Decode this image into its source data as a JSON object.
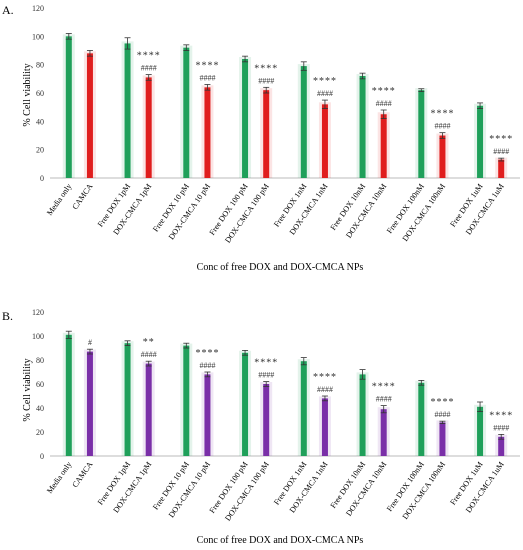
{
  "chart_data": [
    {
      "panel_label": "A.",
      "type": "bar",
      "ylabel": "% Cell viability",
      "xlabel": "Conc of free DOX and DOX-CMCA NPs",
      "ylim": [
        0,
        120
      ],
      "yticks": [
        0,
        20,
        40,
        60,
        80,
        100,
        120
      ],
      "categories": [
        "Media only",
        "CAMCA",
        "Free DOX 1pM",
        "DOX-CMCA 1pM",
        "Free DOX 10 pM",
        "DOX-CMCA 10 pM",
        "Free DOX 100 pM",
        "DOX-CMCA 100 pM",
        "Free DOX 1nM",
        "DOX-CMCA 1nM",
        "Free DOX 10nM",
        "DOX-CMCA 10nM",
        "Free DOX 100nM",
        "DOX-CMCA 100nM",
        "Free DOX 1uM",
        "DOX-CMCA 1uM"
      ],
      "values": [
        100,
        88,
        95,
        71,
        92,
        64,
        84,
        62,
        79,
        52,
        72,
        45,
        62,
        30,
        51,
        13
      ],
      "errors": [
        2,
        2,
        4,
        2,
        2,
        2,
        2,
        2,
        3,
        3,
        2,
        3,
        1,
        2,
        2,
        1
      ],
      "colors": [
        "#1fa05a",
        "#e01e1e",
        "#1fa05a",
        "#e01e1e",
        "#1fa05a",
        "#e01e1e",
        "#1fa05a",
        "#e01e1e",
        "#1fa05a",
        "#e01e1e",
        "#1fa05a",
        "#e01e1e",
        "#1fa05a",
        "#e01e1e",
        "#1fa05a",
        "#e01e1e"
      ],
      "annotations": [
        {
          "index": 3,
          "lines": [
            "****",
            "####"
          ]
        },
        {
          "index": 5,
          "lines": [
            "****",
            "####"
          ]
        },
        {
          "index": 7,
          "lines": [
            "****",
            "####"
          ]
        },
        {
          "index": 9,
          "lines": [
            "****",
            "####"
          ]
        },
        {
          "index": 11,
          "lines": [
            "****",
            "####"
          ]
        },
        {
          "index": 13,
          "lines": [
            "****",
            "####"
          ]
        },
        {
          "index": 15,
          "lines": [
            "****",
            "####"
          ]
        }
      ],
      "grid": false
    },
    {
      "panel_label": "B.",
      "type": "bar",
      "ylabel": "% Cell viability",
      "xlabel": "Conc of free DOX and DOX-CMCA NPs",
      "ylim": [
        0,
        120
      ],
      "yticks": [
        0,
        20,
        40,
        60,
        80,
        100,
        120
      ],
      "categories": [
        "Media only",
        "CAMCA",
        "Free DOX 1pM",
        "DOX-CMCA 1pM",
        "Free DOX 10 pM",
        "DOX-CMCA 10 pM",
        "Free DOX 100 pM",
        "DOX-CMCA 100 pM",
        "Free DOX 1nM",
        "DOX-CMCA 1nM",
        "Free DOX 10nM",
        "DOX-CMCA 10nM",
        "Free DOX 100nM",
        "DOX-CMCA 100nM",
        "Free DOX 1uM",
        "DOX-CMCA 1uM"
      ],
      "values": [
        101,
        87,
        94,
        77,
        92,
        68,
        86,
        60,
        79,
        48,
        68,
        39,
        61,
        28,
        41,
        16
      ],
      "errors": [
        3,
        2,
        2,
        2,
        2,
        2,
        2,
        2,
        3,
        2,
        4,
        3,
        2,
        1,
        4,
        2
      ],
      "colors": [
        "#1fa05a",
        "#7a2fa8",
        "#1fa05a",
        "#7a2fa8",
        "#1fa05a",
        "#7a2fa8",
        "#1fa05a",
        "#7a2fa8",
        "#1fa05a",
        "#7a2fa8",
        "#1fa05a",
        "#7a2fa8",
        "#1fa05a",
        "#7a2fa8",
        "#1fa05a",
        "#7a2fa8"
      ],
      "annotations": [
        {
          "index": 1,
          "lines": [
            "#"
          ]
        },
        {
          "index": 3,
          "lines": [
            "**",
            "####"
          ]
        },
        {
          "index": 5,
          "lines": [
            "****",
            "####"
          ]
        },
        {
          "index": 7,
          "lines": [
            "****",
            "####"
          ]
        },
        {
          "index": 9,
          "lines": [
            "****",
            "####"
          ]
        },
        {
          "index": 11,
          "lines": [
            "****",
            "####"
          ]
        },
        {
          "index": 13,
          "lines": [
            "****",
            "####"
          ]
        },
        {
          "index": 15,
          "lines": [
            "****",
            "####"
          ]
        }
      ],
      "grid": false
    }
  ]
}
